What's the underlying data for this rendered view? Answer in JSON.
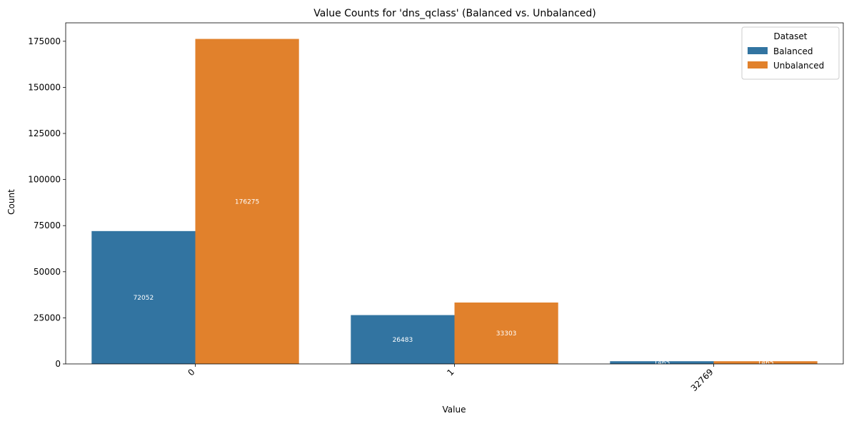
{
  "chart_data": {
    "type": "bar",
    "title": "Value Counts for 'dns_qclass' (Balanced vs. Unbalanced)",
    "xlabel": "Value",
    "ylabel": "Count",
    "categories": [
      "0",
      "1",
      "32769"
    ],
    "series": [
      {
        "name": "Balanced",
        "values": [
          72052,
          26483,
          1465
        ],
        "color": "#3274a1"
      },
      {
        "name": "Unbalanced",
        "values": [
          176275,
          33303,
          1465
        ],
        "color": "#e1812c"
      }
    ],
    "ylim": [
      0,
      185000
    ],
    "yticks": [
      0,
      25000,
      50000,
      75000,
      100000,
      125000,
      150000,
      175000
    ],
    "legend": {
      "title": "Dataset",
      "position": "top-right"
    },
    "grid": false
  }
}
